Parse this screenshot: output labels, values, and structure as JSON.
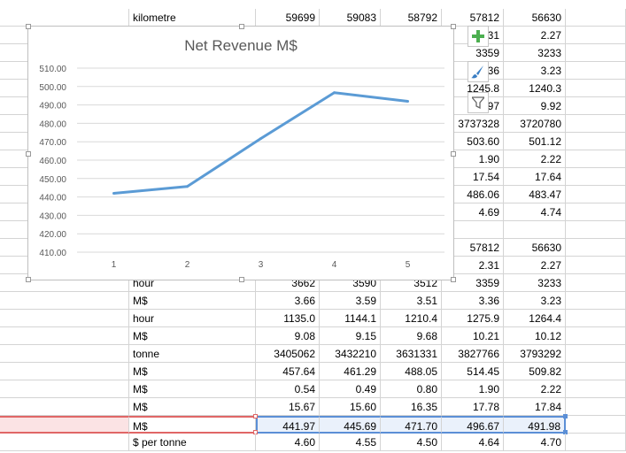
{
  "sheet": {
    "rows": [
      {
        "label": "kilometre",
        "v": [
          "59699",
          "59083",
          "58792",
          "57812",
          "56630"
        ]
      },
      {
        "label": "",
        "v": [
          "",
          "",
          "",
          "2.31",
          "2.27"
        ]
      },
      {
        "label": "",
        "v": [
          "",
          "",
          "",
          "3359",
          "3233"
        ]
      },
      {
        "label": "",
        "v": [
          "",
          "",
          "",
          "3.36",
          "3.23"
        ]
      },
      {
        "label": "",
        "v": [
          "",
          "",
          "",
          "1245.8",
          "1240.3"
        ]
      },
      {
        "label": "",
        "v": [
          "",
          "",
          "",
          "9.97",
          "9.92"
        ]
      },
      {
        "label": "",
        "v": [
          "",
          "",
          "",
          "3737328",
          "3720780"
        ]
      },
      {
        "label": "",
        "v": [
          "",
          "",
          "",
          "503.60",
          "501.12"
        ]
      },
      {
        "label": "",
        "v": [
          "",
          "",
          "",
          "1.90",
          "2.22"
        ]
      },
      {
        "label": "",
        "v": [
          "",
          "",
          "",
          "17.54",
          "17.64"
        ]
      },
      {
        "label": "",
        "v": [
          "",
          "",
          "",
          "486.06",
          "483.47"
        ]
      },
      {
        "label": "",
        "v": [
          "",
          "",
          "",
          "4.69",
          "4.74"
        ]
      },
      {
        "label": "",
        "v": [
          "",
          "",
          "",
          "",
          ""
        ]
      },
      {
        "label": "",
        "v": [
          "",
          "",
          "",
          "57812",
          "56630"
        ]
      },
      {
        "label": "",
        "v": [
          "",
          "",
          "",
          "2.31",
          "2.27"
        ]
      },
      {
        "label": "hour",
        "v": [
          "3662",
          "3590",
          "3512",
          "3359",
          "3233"
        ]
      },
      {
        "label": "M$",
        "v": [
          "3.66",
          "3.59",
          "3.51",
          "3.36",
          "3.23"
        ]
      },
      {
        "label": "hour",
        "v": [
          "1135.0",
          "1144.1",
          "1210.4",
          "1275.9",
          "1264.4"
        ]
      },
      {
        "label": "M$",
        "v": [
          "9.08",
          "9.15",
          "9.68",
          "10.21",
          "10.12"
        ]
      },
      {
        "label": "tonne",
        "v": [
          "3405062",
          "3432210",
          "3631331",
          "3827766",
          "3793292"
        ]
      },
      {
        "label": "M$",
        "v": [
          "457.64",
          "461.29",
          "488.05",
          "514.45",
          "509.82"
        ]
      },
      {
        "label": "M$",
        "v": [
          "0.54",
          "0.49",
          "0.80",
          "1.90",
          "2.22"
        ]
      },
      {
        "label": "M$",
        "v": [
          "15.67",
          "15.60",
          "16.35",
          "17.78",
          "17.84"
        ]
      },
      {
        "label": "M$",
        "v": [
          "441.97",
          "445.69",
          "471.70",
          "496.67",
          "491.98"
        ]
      },
      {
        "label": "$ per tonne",
        "v": [
          "4.60",
          "4.55",
          "4.50",
          "4.64",
          "4.70"
        ]
      }
    ],
    "selected_row": 23
  },
  "chart_data": {
    "type": "line",
    "title": "Net Revenue M$",
    "x": [
      "1",
      "2",
      "3",
      "4",
      "5"
    ],
    "series": [
      {
        "values": [
          441.97,
          445.69,
          471.7,
          496.67,
          491.98
        ],
        "color": "#5b9bd5"
      }
    ],
    "ylim": [
      410,
      510
    ],
    "yticks": [
      "410.00",
      "420.00",
      "430.00",
      "440.00",
      "450.00",
      "460.00",
      "470.00",
      "480.00",
      "490.00",
      "500.00",
      "510.00"
    ],
    "grid": true
  },
  "chart_buttons": [
    {
      "icon": "plus-icon",
      "color": "#4caf50"
    },
    {
      "icon": "brush-icon",
      "color": "#3b7fc4"
    },
    {
      "icon": "filter-icon",
      "color": "#666666"
    }
  ]
}
